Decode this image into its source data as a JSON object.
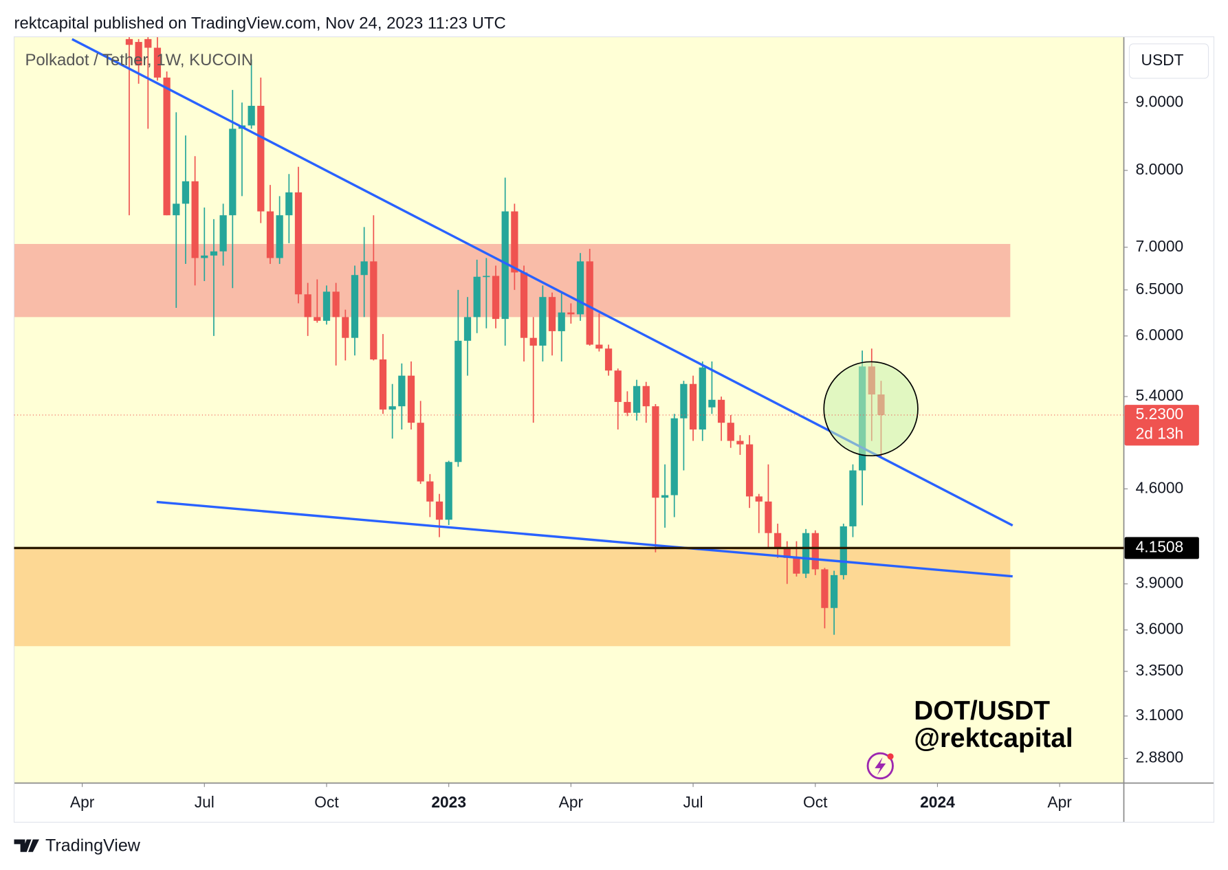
{
  "chart_data": {
    "type": "candlestick",
    "header": "rektcapital published on TradingView.com, Nov 24, 2023 11:23 UTC",
    "title": "Polkadot / Tether, 1W, KUCOIN",
    "currency": "USDT",
    "annotations": [
      "DOT/USDT",
      "@rektcapital"
    ],
    "footer": "TradingView",
    "log_scale": true,
    "up_color": "#26a69a",
    "down_color": "#ef5350",
    "x": [
      5,
      6,
      7,
      8,
      9,
      10,
      11,
      12,
      13,
      14,
      15,
      16,
      17,
      18,
      19,
      20,
      21,
      22,
      23,
      24,
      25,
      26,
      27,
      28,
      29,
      30,
      31,
      32,
      33,
      34,
      35,
      36,
      37,
      38,
      39,
      40,
      41,
      42,
      43,
      44,
      45,
      46,
      47,
      48,
      49,
      50,
      51,
      52,
      53,
      54,
      55,
      56,
      57,
      58,
      59,
      60,
      61,
      62,
      63,
      64,
      65,
      66,
      67,
      68,
      69,
      70,
      71,
      72,
      73,
      74,
      75,
      76,
      77,
      78,
      79,
      80,
      81,
      82,
      83,
      84,
      85
    ],
    "open": [
      10.05,
      10.0,
      10.05,
      9.9,
      9.4,
      7.4,
      7.55,
      7.85,
      6.87,
      6.9,
      6.95,
      7.4,
      8.6,
      8.65,
      8.95,
      7.45,
      6.87,
      7.4,
      7.7,
      6.45,
      6.2,
      6.16,
      6.48,
      6.2,
      5.98,
      6.67,
      6.83,
      5.76,
      5.28,
      5.31,
      5.6,
      5.16,
      4.66,
      4.5,
      4.36,
      4.82,
      5.95,
      6.2,
      6.65,
      6.66,
      6.18,
      7.45,
      6.7,
      5.98,
      5.9,
      6.42,
      6.05,
      6.25,
      6.23,
      6.83,
      5.91,
      5.87,
      5.65,
      5.35,
      5.25,
      5.5,
      5.31,
      4.53,
      4.55,
      5.2,
      5.52,
      5.1,
      5.3,
      5.37,
      5.16,
      5.0,
      4.97,
      4.54,
      4.5,
      4.26,
      4.15,
      4.08,
      3.97,
      4.26,
      4.0,
      3.74,
      3.96,
      4.31,
      4.75,
      5.69,
      5.42
    ],
    "high": [
      10.09,
      10.05,
      10.09,
      10.09,
      9.5,
      8.85,
      8.5,
      8.2,
      7.5,
      7.35,
      7.55,
      9.2,
      9.0,
      9.7,
      9.4,
      7.8,
      7.65,
      7.95,
      8.05,
      6.58,
      6.62,
      6.55,
      6.58,
      6.28,
      6.78,
      7.25,
      7.4,
      6.02,
      5.52,
      5.72,
      5.74,
      5.36,
      4.72,
      4.56,
      4.83,
      6.5,
      6.42,
      6.85,
      6.87,
      6.78,
      7.9,
      7.55,
      6.78,
      6.2,
      6.55,
      6.47,
      6.48,
      6.35,
      6.93,
      6.98,
      6.24,
      5.91,
      5.67,
      5.45,
      5.56,
      5.54,
      5.33,
      4.8,
      5.24,
      5.55,
      5.6,
      5.74,
      5.74,
      5.4,
      5.23,
      5.05,
      5.05,
      4.56,
      4.8,
      4.33,
      4.2,
      4.2,
      4.29,
      4.28,
      4.01,
      3.99,
      4.33,
      4.8,
      5.85,
      5.87,
      5.55
    ],
    "low": [
      7.4,
      9.3,
      8.6,
      9.35,
      7.4,
      6.3,
      6.8,
      6.55,
      6.6,
      6.0,
      6.78,
      6.52,
      7.65,
      8.6,
      7.3,
      6.8,
      6.8,
      7.05,
      6.35,
      6.0,
      6.14,
      6.12,
      5.7,
      5.75,
      5.8,
      6.2,
      5.75,
      5.24,
      5.02,
      5.1,
      5.1,
      4.64,
      4.38,
      4.23,
      4.32,
      4.78,
      5.6,
      6.03,
      6.08,
      6.08,
      5.9,
      6.5,
      5.74,
      5.16,
      5.74,
      5.8,
      5.74,
      6.13,
      6.16,
      5.9,
      5.84,
      5.6,
      5.1,
      5.22,
      5.18,
      5.16,
      4.12,
      4.3,
      4.38,
      4.75,
      5.0,
      5.0,
      5.24,
      5.0,
      4.94,
      4.88,
      4.45,
      4.26,
      4.15,
      4.08,
      3.9,
      3.95,
      3.94,
      3.96,
      3.61,
      3.57,
      3.93,
      4.23,
      4.47,
      5.0,
      4.85
    ],
    "close": [
      9.95,
      9.6,
      9.9,
      9.4,
      7.4,
      7.55,
      7.85,
      6.87,
      6.9,
      6.95,
      7.4,
      8.6,
      8.65,
      8.95,
      7.45,
      6.87,
      7.4,
      7.7,
      6.45,
      6.2,
      6.16,
      6.48,
      6.2,
      5.98,
      6.67,
      6.83,
      5.76,
      5.28,
      5.31,
      5.6,
      5.16,
      4.66,
      4.5,
      4.36,
      4.82,
      5.95,
      6.2,
      6.65,
      6.66,
      6.18,
      7.45,
      6.7,
      5.98,
      5.9,
      6.42,
      6.05,
      6.25,
      6.23,
      6.83,
      5.91,
      5.87,
      5.65,
      5.35,
      5.25,
      5.5,
      5.31,
      4.53,
      4.55,
      5.2,
      5.52,
      5.1,
      5.68,
      5.37,
      5.16,
      5.0,
      4.97,
      4.54,
      4.5,
      4.26,
      4.15,
      4.08,
      3.97,
      4.26,
      4.0,
      3.74,
      3.96,
      4.31,
      4.75,
      5.69,
      5.42,
      5.23
    ],
    "xlim": [
      -7.25,
      110.83
    ],
    "xticks": [
      {
        "value": 0,
        "label": "Apr"
      },
      {
        "value": 13,
        "label": "Jul"
      },
      {
        "value": 26,
        "label": "Oct"
      },
      {
        "value": 39,
        "label": "2023"
      },
      {
        "value": 52,
        "label": "Apr"
      },
      {
        "value": 65,
        "label": "Jul"
      },
      {
        "value": 78,
        "label": "Oct"
      },
      {
        "value": 91,
        "label": "2024"
      },
      {
        "value": 104,
        "label": "Apr"
      }
    ],
    "ylim": [
      2.759,
      10.09
    ],
    "yticks": [
      {
        "value": 2.88,
        "label": "2.8800"
      },
      {
        "value": 3.1,
        "label": "3.1000"
      },
      {
        "value": 3.35,
        "label": "3.3500"
      },
      {
        "value": 3.6,
        "label": "3.6000"
      },
      {
        "value": 3.9,
        "label": "3.9000"
      },
      {
        "value": 4.6,
        "label": "4.6000"
      },
      {
        "value": 5.4,
        "label": "5.4000"
      },
      {
        "value": 6,
        "label": "6.0000"
      },
      {
        "value": 6.5,
        "label": "6.5000"
      },
      {
        "value": 7,
        "label": "7.0000"
      },
      {
        "value": 8,
        "label": "8.0000"
      },
      {
        "value": 9,
        "label": "9.0000"
      }
    ],
    "level": 4.1508,
    "last_price": {
      "value": 5.23,
      "label": "5.2300"
    },
    "countdown": "2d 13h",
    "zones": [
      {
        "range": [
          6.2,
          7.04
        ],
        "color": "#f9bca8"
      },
      {
        "range": [
          3.5,
          4.15
        ],
        "color": "#fdd894"
      }
    ]
  }
}
